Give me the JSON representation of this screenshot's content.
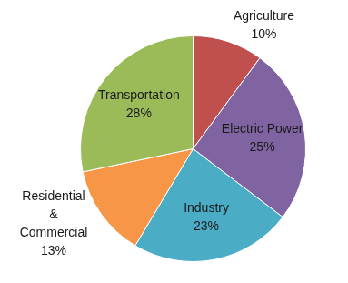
{
  "chart_data": {
    "type": "pie",
    "categories": [
      "Agriculture",
      "Electric Power",
      "Industry",
      "Residential & Commercial",
      "Transportation"
    ],
    "values": [
      10,
      25,
      23,
      13,
      28
    ],
    "value_labels": [
      "10%",
      "25%",
      "23%",
      "13%",
      "28%"
    ],
    "colors": [
      "#c0504d",
      "#8064a2",
      "#4bacc6",
      "#f79646",
      "#9bbb59"
    ],
    "data_labels": true
  }
}
